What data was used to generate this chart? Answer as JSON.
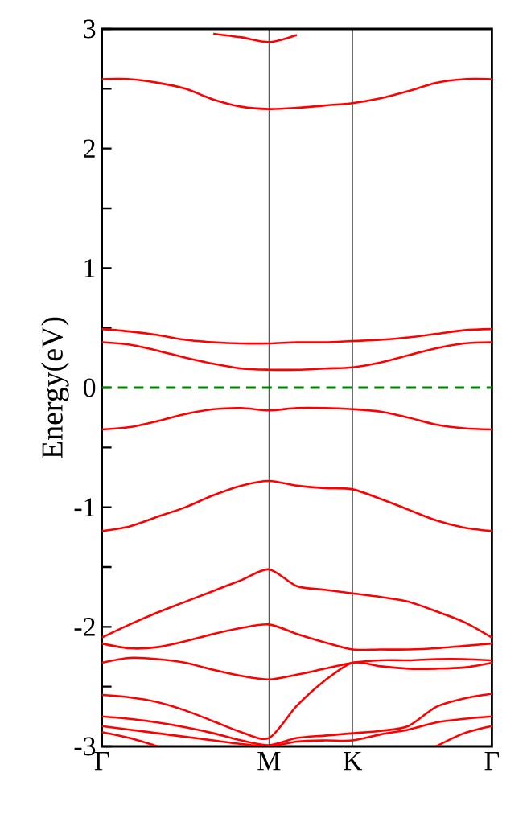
{
  "chart_data": {
    "type": "line",
    "ylabel": "Energy(eV)",
    "ylim": [
      -3,
      3
    ],
    "categories": [
      "Γ",
      null,
      null,
      null,
      null,
      null,
      "M",
      null,
      null,
      "K",
      null,
      null,
      null,
      null,
      "Γ"
    ],
    "yticks": [
      -3,
      {
        "value": -2.5,
        "label": null
      },
      -2,
      {
        "value": -1.5,
        "label": null
      },
      -1,
      {
        "value": -0.5,
        "label": null
      },
      0,
      {
        "value": 0.5,
        "label": null
      },
      1,
      {
        "value": 1.5,
        "label": null
      },
      2,
      {
        "value": 2.5,
        "label": null
      },
      3
    ],
    "grid": "x",
    "marker": "none",
    "line_style": "solid",
    "ref_lines": [
      {
        "axis": "y",
        "value": 0,
        "color": "#008000",
        "line_style": "dashed"
      }
    ],
    "series": [
      {
        "color": "#ff0000",
        "values": [
          null,
          null,
          null,
          null,
          2.96,
          2.93,
          2.89,
          2.95,
          null,
          null,
          null,
          null,
          null,
          null,
          null
        ]
      },
      {
        "color": "#ff0000",
        "values": [
          2.58,
          2.58,
          2.55,
          2.5,
          2.41,
          2.35,
          2.33,
          2.34,
          2.36,
          2.38,
          2.42,
          2.48,
          2.55,
          2.58,
          2.58
        ]
      },
      {
        "color": "#ff0000",
        "values": [
          0.49,
          0.47,
          0.44,
          0.4,
          0.38,
          0.37,
          0.37,
          0.38,
          0.38,
          0.39,
          0.4,
          0.42,
          0.45,
          0.48,
          0.49
        ]
      },
      {
        "color": "#ff0000",
        "values": [
          0.38,
          0.36,
          0.31,
          0.25,
          0.2,
          0.16,
          0.15,
          0.15,
          0.16,
          0.17,
          0.21,
          0.27,
          0.33,
          0.37,
          0.38
        ]
      },
      {
        "color": "#ff0000",
        "values": [
          -0.35,
          -0.33,
          -0.28,
          -0.22,
          -0.18,
          -0.17,
          -0.19,
          -0.17,
          -0.17,
          -0.18,
          -0.2,
          -0.25,
          -0.31,
          -0.34,
          -0.35
        ]
      },
      {
        "color": "#ff0000",
        "values": [
          -1.2,
          -1.16,
          -1.08,
          -1.0,
          -0.9,
          -0.82,
          -0.78,
          -0.82,
          -0.84,
          -0.85,
          -0.93,
          -1.02,
          -1.11,
          -1.17,
          -1.2
        ]
      },
      {
        "color": "#ff0000",
        "values": [
          -2.09,
          -1.98,
          -1.88,
          -1.79,
          -1.7,
          -1.61,
          -1.52,
          -1.66,
          -1.69,
          -1.72,
          -1.75,
          -1.79,
          -1.87,
          -1.96,
          -2.09
        ]
      },
      {
        "color": "#ff0000",
        "values": [
          -2.14,
          -2.18,
          -2.17,
          -2.12,
          -2.06,
          -2.01,
          -1.98,
          -2.06,
          -2.13,
          -2.19,
          -2.19,
          -2.19,
          -2.18,
          -2.16,
          -2.14
        ]
      },
      {
        "color": "#ff0000",
        "values": [
          -2.3,
          -2.26,
          -2.27,
          -2.3,
          -2.36,
          -2.41,
          -2.44,
          -2.4,
          -2.35,
          -2.3,
          -2.28,
          -2.28,
          -2.27,
          -2.27,
          -2.28
        ]
      },
      {
        "color": "#ff0000",
        "values": [
          -2.57,
          -2.59,
          -2.63,
          -2.7,
          -2.79,
          -2.88,
          -2.93,
          -2.66,
          -2.45,
          -2.3,
          -2.33,
          -2.35,
          -2.35,
          -2.34,
          -2.3
        ]
      },
      {
        "color": "#ff0000",
        "values": [
          -2.75,
          -2.77,
          -2.8,
          -2.84,
          -2.89,
          -2.95,
          -2.99,
          -2.93,
          -2.91,
          -2.89,
          -2.87,
          -2.83,
          -2.67,
          -2.6,
          -2.56
        ]
      },
      {
        "color": "#ff0000",
        "values": [
          -2.83,
          -2.86,
          -2.89,
          -2.92,
          -2.95,
          -2.98,
          -3.0,
          -2.96,
          -2.95,
          -2.95,
          -2.9,
          -2.86,
          -2.8,
          -2.77,
          -2.75
        ]
      },
      {
        "color": "#ff0000",
        "values": [
          -2.88,
          -2.93,
          -3.0,
          null,
          null,
          null,
          null,
          null,
          null,
          null,
          null,
          null,
          null,
          null,
          null
        ]
      },
      {
        "color": "#ff0000",
        "values": [
          null,
          null,
          null,
          null,
          null,
          null,
          null,
          null,
          null,
          null,
          null,
          null,
          -3.0,
          -2.89,
          -2.83
        ]
      }
    ]
  }
}
